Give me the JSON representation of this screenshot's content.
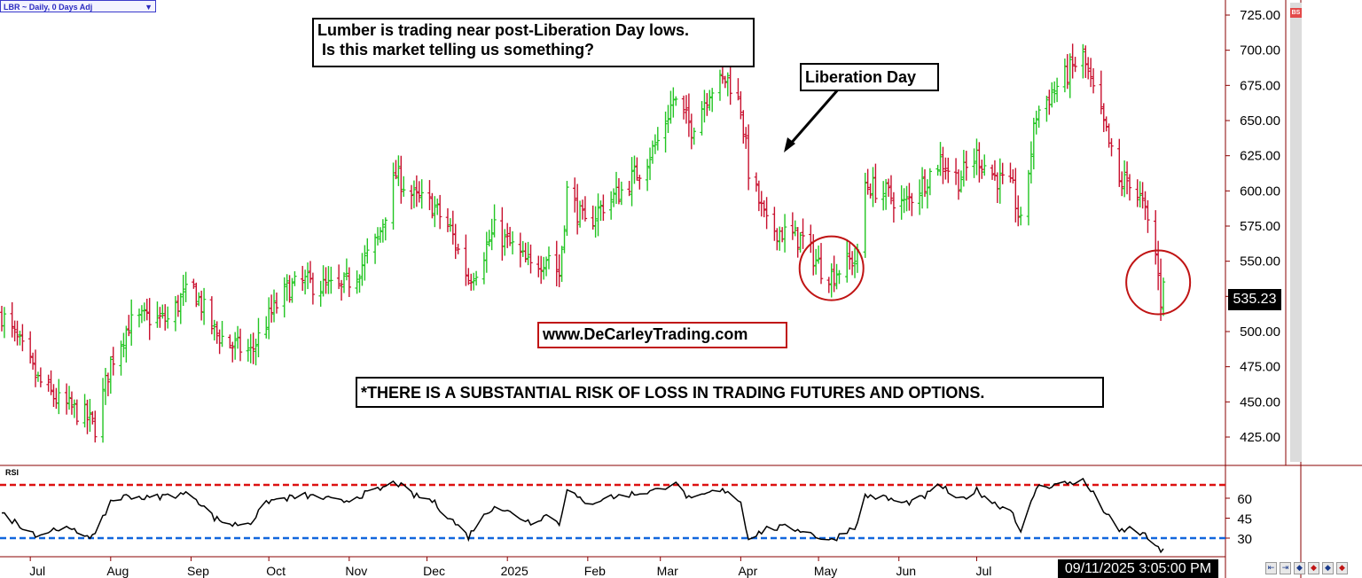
{
  "toolbar": {
    "symbol_label": "LBR ~ Daily, 0 Days Adj",
    "dropdown_icon": "triangle-down-icon"
  },
  "annotations": {
    "headline_line1": "Lumber is trading near post-Liberation Day lows.",
    "headline_line2": " Is this market telling us something?",
    "liberation_day": "Liberation Day",
    "website": "www.DeCarleyTrading.com",
    "risk_disclaimer": "*THERE IS A SUBSTANTIAL RISK OF LOSS IN TRADING FUTURES AND OPTIONS."
  },
  "status": {
    "timestamp": "09/11/2025 3:05:00 PM",
    "last_price": "535.23",
    "badge": "BS"
  },
  "navigation": {
    "buttons": [
      "first-icon",
      "back-icon",
      "diamond-icon",
      "diamond-icon",
      "diamond-icon",
      "diamond-icon"
    ]
  },
  "colors": {
    "up": "#22c522",
    "down": "#c8102e",
    "rsi_overbought": "#dd1111",
    "rsi_oversold": "#1166dd",
    "rsi_line": "#000000",
    "callout_circle": "#c01414"
  },
  "chart_data": [
    {
      "type": "ohlc",
      "title": "",
      "price_axis": {
        "ticks": [
          "725.00",
          "700.00",
          "675.00",
          "650.00",
          "625.00",
          "600.00",
          "575.00",
          "550.00",
          "525.00",
          "500.00",
          "475.00",
          "450.00",
          "425.00"
        ],
        "range": [
          410,
          732
        ]
      },
      "time_axis": {
        "labels": [
          "Jul",
          "Aug",
          "Sep",
          "Oct",
          "Nov",
          "Dec",
          "2025",
          "Feb",
          "Mar",
          "Apr",
          "May",
          "Jun",
          "Jul"
        ]
      },
      "last_value": 535.23,
      "anchors": [
        {
          "d": "2024-06-20",
          "c": 512
        },
        {
          "d": "2024-06-27",
          "c": 490
        },
        {
          "d": "2024-07-04",
          "c": 465
        },
        {
          "d": "2024-07-12",
          "c": 450
        },
        {
          "d": "2024-07-22",
          "c": 440
        },
        {
          "d": "2024-07-26",
          "c": 432
        },
        {
          "d": "2024-08-01",
          "c": 478
        },
        {
          "d": "2024-08-08",
          "c": 505
        },
        {
          "d": "2024-08-15",
          "c": 510
        },
        {
          "d": "2024-08-23",
          "c": 508
        },
        {
          "d": "2024-08-29",
          "c": 525
        },
        {
          "d": "2024-09-02",
          "c": 530
        },
        {
          "d": "2024-09-10",
          "c": 500
        },
        {
          "d": "2024-09-17",
          "c": 490
        },
        {
          "d": "2024-09-24",
          "c": 485
        },
        {
          "d": "2024-10-01",
          "c": 510
        },
        {
          "d": "2024-10-08",
          "c": 530
        },
        {
          "d": "2024-10-15",
          "c": 535
        },
        {
          "d": "2024-10-22",
          "c": 532
        },
        {
          "d": "2024-10-29",
          "c": 530
        },
        {
          "d": "2024-11-05",
          "c": 545
        },
        {
          "d": "2024-11-12",
          "c": 565
        },
        {
          "d": "2024-11-19",
          "c": 612
        },
        {
          "d": "2024-11-26",
          "c": 595
        },
        {
          "d": "2024-12-03",
          "c": 590
        },
        {
          "d": "2024-12-10",
          "c": 572
        },
        {
          "d": "2024-12-17",
          "c": 538
        },
        {
          "d": "2024-12-20",
          "c": 545
        },
        {
          "d": "2024-12-27",
          "c": 572
        },
        {
          "d": "2025-01-03",
          "c": 560
        },
        {
          "d": "2025-01-10",
          "c": 545
        },
        {
          "d": "2025-01-17",
          "c": 555
        },
        {
          "d": "2025-01-21",
          "c": 540
        },
        {
          "d": "2025-01-24",
          "c": 600
        },
        {
          "d": "2025-01-31",
          "c": 575
        },
        {
          "d": "2025-02-07",
          "c": 590
        },
        {
          "d": "2025-02-14",
          "c": 600
        },
        {
          "d": "2025-02-21",
          "c": 615
        },
        {
          "d": "2025-02-28",
          "c": 635
        },
        {
          "d": "2025-03-06",
          "c": 665
        },
        {
          "d": "2025-03-13",
          "c": 645
        },
        {
          "d": "2025-03-20",
          "c": 672
        },
        {
          "d": "2025-03-27",
          "c": 680
        },
        {
          "d": "2025-04-01",
          "c": 660
        },
        {
          "d": "2025-04-04",
          "c": 615
        },
        {
          "d": "2025-04-11",
          "c": 575
        },
        {
          "d": "2025-04-18",
          "c": 570
        },
        {
          "d": "2025-04-25",
          "c": 565
        },
        {
          "d": "2025-05-02",
          "c": 545
        },
        {
          "d": "2025-05-06",
          "c": 540
        },
        {
          "d": "2025-05-13",
          "c": 550
        },
        {
          "d": "2025-05-16",
          "c": 552
        },
        {
          "d": "2025-05-19",
          "c": 605
        },
        {
          "d": "2025-05-27",
          "c": 598
        },
        {
          "d": "2025-06-03",
          "c": 590
        },
        {
          "d": "2025-06-10",
          "c": 605
        },
        {
          "d": "2025-06-17",
          "c": 622
        },
        {
          "d": "2025-06-24",
          "c": 608
        },
        {
          "d": "2025-07-01",
          "c": 625
        },
        {
          "d": "2025-07-08",
          "c": 610
        },
        {
          "d": "2025-07-15",
          "c": 600
        },
        {
          "d": "2025-07-18",
          "c": 575
        },
        {
          "d": "2025-07-24",
          "c": 655
        },
        {
          "d": "2025-07-31",
          "c": 672
        },
        {
          "d": "2025-08-07",
          "c": 688
        },
        {
          "d": "2025-08-11",
          "c": 695
        },
        {
          "d": "2025-08-15",
          "c": 670
        },
        {
          "d": "2025-08-20",
          "c": 640
        },
        {
          "d": "2025-08-25",
          "c": 605
        },
        {
          "d": "2025-08-29",
          "c": 608
        },
        {
          "d": "2025-09-03",
          "c": 590
        },
        {
          "d": "2025-09-08",
          "c": 555
        },
        {
          "d": "2025-09-10",
          "c": 522
        },
        {
          "d": "2025-09-11",
          "c": 535.23
        }
      ],
      "callouts": [
        {
          "d": "2025-05-06",
          "value": 545,
          "shape": "circle"
        },
        {
          "d": "2025-09-09",
          "value": 535,
          "shape": "circle"
        }
      ]
    },
    {
      "type": "line",
      "title": "RSI",
      "y_ticks": [
        "60",
        "45",
        "30"
      ],
      "overbought": 70,
      "oversold": 30,
      "anchors": [
        {
          "d": "2024-06-20",
          "v": 48
        },
        {
          "d": "2024-06-27",
          "v": 40
        },
        {
          "d": "2024-07-04",
          "v": 32
        },
        {
          "d": "2024-07-12",
          "v": 38
        },
        {
          "d": "2024-07-22",
          "v": 33
        },
        {
          "d": "2024-07-26",
          "v": 31
        },
        {
          "d": "2024-08-01",
          "v": 58
        },
        {
          "d": "2024-08-08",
          "v": 62
        },
        {
          "d": "2024-08-15",
          "v": 60
        },
        {
          "d": "2024-08-23",
          "v": 62
        },
        {
          "d": "2024-08-29",
          "v": 63
        },
        {
          "d": "2024-09-02",
          "v": 62
        },
        {
          "d": "2024-09-10",
          "v": 45
        },
        {
          "d": "2024-09-17",
          "v": 40
        },
        {
          "d": "2024-09-24",
          "v": 42
        },
        {
          "d": "2024-10-01",
          "v": 58
        },
        {
          "d": "2024-10-08",
          "v": 60
        },
        {
          "d": "2024-10-15",
          "v": 62
        },
        {
          "d": "2024-10-22",
          "v": 60
        },
        {
          "d": "2024-10-29",
          "v": 57
        },
        {
          "d": "2024-11-05",
          "v": 62
        },
        {
          "d": "2024-11-12",
          "v": 66
        },
        {
          "d": "2024-11-19",
          "v": 72
        },
        {
          "d": "2024-11-26",
          "v": 62
        },
        {
          "d": "2024-12-03",
          "v": 58
        },
        {
          "d": "2024-12-10",
          "v": 45
        },
        {
          "d": "2024-12-17",
          "v": 31
        },
        {
          "d": "2024-12-20",
          "v": 40
        },
        {
          "d": "2024-12-27",
          "v": 55
        },
        {
          "d": "2025-01-03",
          "v": 48
        },
        {
          "d": "2025-01-10",
          "v": 42
        },
        {
          "d": "2025-01-17",
          "v": 48
        },
        {
          "d": "2025-01-21",
          "v": 40
        },
        {
          "d": "2025-01-24",
          "v": 68
        },
        {
          "d": "2025-01-31",
          "v": 55
        },
        {
          "d": "2025-02-07",
          "v": 60
        },
        {
          "d": "2025-02-14",
          "v": 62
        },
        {
          "d": "2025-02-21",
          "v": 64
        },
        {
          "d": "2025-02-28",
          "v": 66
        },
        {
          "d": "2025-03-06",
          "v": 72
        },
        {
          "d": "2025-03-13",
          "v": 58
        },
        {
          "d": "2025-03-20",
          "v": 64
        },
        {
          "d": "2025-03-27",
          "v": 66
        },
        {
          "d": "2025-04-01",
          "v": 57
        },
        {
          "d": "2025-04-04",
          "v": 30
        },
        {
          "d": "2025-04-11",
          "v": 37
        },
        {
          "d": "2025-04-18",
          "v": 38
        },
        {
          "d": "2025-04-25",
          "v": 36
        },
        {
          "d": "2025-05-02",
          "v": 30
        },
        {
          "d": "2025-05-06",
          "v": 28
        },
        {
          "d": "2025-05-13",
          "v": 37
        },
        {
          "d": "2025-05-16",
          "v": 40
        },
        {
          "d": "2025-05-19",
          "v": 62
        },
        {
          "d": "2025-05-27",
          "v": 60
        },
        {
          "d": "2025-06-03",
          "v": 56
        },
        {
          "d": "2025-06-10",
          "v": 60
        },
        {
          "d": "2025-06-17",
          "v": 70
        },
        {
          "d": "2025-06-24",
          "v": 58
        },
        {
          "d": "2025-07-01",
          "v": 66
        },
        {
          "d": "2025-07-08",
          "v": 56
        },
        {
          "d": "2025-07-15",
          "v": 50
        },
        {
          "d": "2025-07-18",
          "v": 33
        },
        {
          "d": "2025-07-24",
          "v": 68
        },
        {
          "d": "2025-07-31",
          "v": 70
        },
        {
          "d": "2025-08-07",
          "v": 72
        },
        {
          "d": "2025-08-11",
          "v": 73
        },
        {
          "d": "2025-08-15",
          "v": 63
        },
        {
          "d": "2025-08-20",
          "v": 48
        },
        {
          "d": "2025-08-25",
          "v": 35
        },
        {
          "d": "2025-08-29",
          "v": 37
        },
        {
          "d": "2025-09-03",
          "v": 33
        },
        {
          "d": "2025-09-08",
          "v": 25
        },
        {
          "d": "2025-09-10",
          "v": 18
        },
        {
          "d": "2025-09-11",
          "v": 22
        }
      ]
    }
  ]
}
